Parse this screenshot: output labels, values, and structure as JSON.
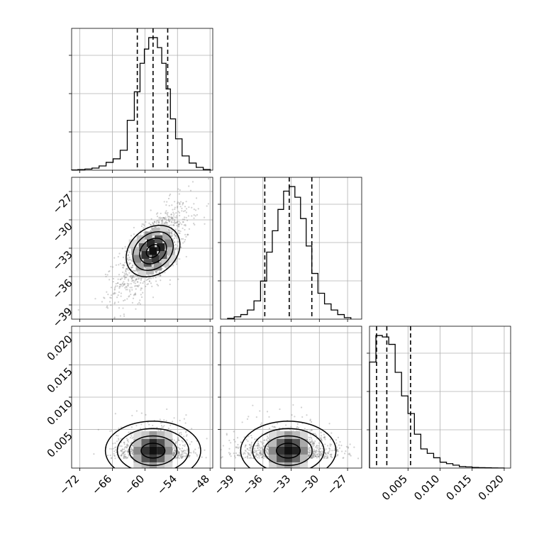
{
  "chart_data": {
    "type": "corner",
    "grid": true,
    "variables": [
      {
        "range": [
          -73.5,
          -47.5
        ],
        "ticks": [
          -72,
          -66,
          -60,
          -54,
          -48
        ],
        "tick_labels": [
          "−72",
          "−66",
          "−60",
          "−54",
          "−48"
        ],
        "quantiles": [
          -61.4,
          -58.5,
          -55.8
        ]
      },
      {
        "range": [
          -40.5,
          -25.5
        ],
        "ticks": [
          -39,
          -36,
          -33,
          -30,
          -27
        ],
        "tick_labels": [
          "−39",
          "−36",
          "−33",
          "−30",
          "−27"
        ],
        "quantiles": [
          -35.8,
          -33.2,
          -30.8
        ]
      },
      {
        "range": [
          -0.001,
          0.021
        ],
        "ticks": [
          0.005,
          0.01,
          0.015,
          0.02
        ],
        "tick_labels": [
          "0.005",
          "0.010",
          "0.015",
          "0.020"
        ],
        "quantiles": [
          0.0001,
          0.0017,
          0.0054
        ]
      }
    ],
    "histograms": [
      {
        "variable": 0,
        "bin_centers": [
          -73,
          -71.7,
          -70.4,
          -69.1,
          -67.8,
          -66.5,
          -65.2,
          -63.9,
          -62.6,
          -61.3,
          -60.5,
          -59.7,
          -58.9,
          -58.1,
          -57.3,
          -56.5,
          -55.7,
          -54.9,
          -53.8,
          -52.5,
          -51.2,
          -49.9,
          -48.6
        ],
        "counts": [
          0.2,
          0.4,
          0.8,
          1.5,
          3,
          5.5,
          8,
          14,
          35,
          55,
          75,
          85,
          93,
          93,
          86,
          75,
          57,
          36,
          22,
          10,
          5,
          2,
          0.5
        ]
      },
      {
        "variable": 1,
        "bin_centers": [
          -39.4,
          -38.7,
          -38,
          -37.3,
          -36.6,
          -35.9,
          -35.3,
          -34.7,
          -34.1,
          -33.5,
          -32.9,
          -32.3,
          -31.7,
          -31.1,
          -30.5,
          -29.8,
          -29.1,
          -28.4,
          -27.7,
          -27
        ],
        "counts": [
          0.5,
          1.5,
          3,
          6,
          12,
          25,
          44,
          58,
          72,
          84,
          87,
          80,
          66,
          48,
          30,
          17,
          10,
          6,
          3,
          1
        ]
      },
      {
        "variable": 2,
        "bin_centers": [
          -0.0005,
          0.0005,
          0.0015,
          0.0025,
          0.0035,
          0.0045,
          0.0055,
          0.0065,
          0.0075,
          0.0085,
          0.0095,
          0.0105,
          0.0115,
          0.0125,
          0.0135,
          0.0145,
          0.0155,
          0.0165,
          0.0175,
          0.0185,
          0.0195
        ],
        "counts": [
          72,
          90,
          89,
          84,
          65,
          49,
          37,
          23,
          13,
          10,
          7,
          4,
          3,
          2,
          1,
          0.8,
          0.4,
          0.3,
          0.2,
          0.1,
          0.05
        ]
      }
    ],
    "scatter_2d": [
      {
        "x_var": 0,
        "y_var": 1,
        "mean": [
          -58.5,
          -33.3
        ],
        "sd": [
          3.4,
          2.5
        ],
        "corr": 0.7,
        "n_points": 1200
      },
      {
        "x_var": 0,
        "y_var": 2,
        "mean": [
          -58.5,
          0.0025
        ],
        "sd": [
          3.4,
          0.0022
        ],
        "corr": 0.05,
        "n_points": 1100
      },
      {
        "x_var": 1,
        "y_var": 2,
        "mean": [
          -33.3,
          0.0025
        ],
        "sd": [
          2.5,
          0.0022
        ],
        "corr": 0.05,
        "n_points": 1100
      }
    ],
    "contour_levels_sigma": [
      0.5,
      1.0,
      1.5,
      2.0
    ]
  }
}
